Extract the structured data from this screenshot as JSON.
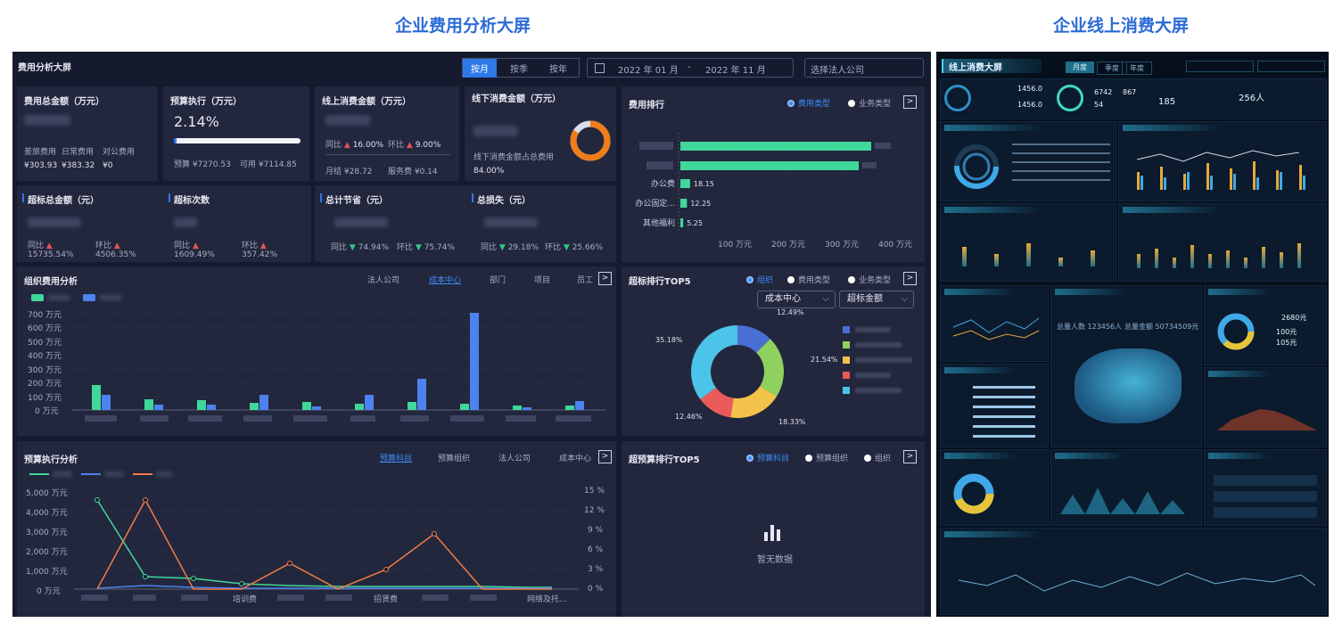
{
  "titles": {
    "left": "企业费用分析大屏",
    "right": "企业线上消费大屏"
  },
  "dash": {
    "title": "费用分析大屏",
    "period_tabs": [
      "按月",
      "按季",
      "按年"
    ],
    "date_start": "2022 年 01 月",
    "date_sep": "-",
    "date_end": "2022 年 11 月",
    "company_placeholder": "选择法人公司",
    "kpi": {
      "total": {
        "title": "费用总金额（万元）",
        "sub": [
          "差旅费用",
          "日常费用",
          "对公费用"
        ],
        "vals": [
          "¥303.93",
          "¥383.32",
          "¥0"
        ]
      },
      "budget": {
        "title": "预算执行（万元）",
        "value": "2.14%",
        "progress": 0.0214,
        "budget_label": "预算 ¥7270.53",
        "available_label": "可用 ¥7114.85"
      },
      "online": {
        "title": "线上消费金额（万元）",
        "yoy_label": "同比",
        "yoy": "16.00%",
        "mom_label": "环比",
        "mom": "9.00%",
        "monthly": "月结 ¥28.72",
        "service": "服务费 ¥0.14"
      },
      "offline": {
        "title": "线下消费金额（万元）",
        "share_label": "线下消费金额占总费用",
        "share": "84.00%",
        "share_value": 0.84
      },
      "over_total": {
        "title": "超标总金额（元）",
        "yoy_label": "同比",
        "yoy": "15735.54%",
        "mom_label": "环比",
        "mom": "4506.35%"
      },
      "over_count": {
        "title": "超标次数",
        "yoy_label": "同比",
        "yoy": "1609.49%",
        "mom_label": "环比",
        "mom": "357.42%"
      },
      "saving": {
        "title": "总计节省（元）",
        "yoy_label": "同比",
        "yoy": "74.94%",
        "mom_label": "环比",
        "mom": "75.74%"
      },
      "loss": {
        "title": "总损失（元）",
        "yoy_label": "同比",
        "yoy": "29.18%",
        "mom_label": "环比",
        "mom": "25.66%"
      }
    },
    "ranking": {
      "title": "费用排行",
      "radios": [
        "费用类型",
        "业务类型"
      ],
      "bars": [
        {
          "label": "办公费",
          "value": 18.15
        },
        {
          "label": "办公固定...",
          "value": 12.25
        },
        {
          "label": "其他福利",
          "value": 5.25
        }
      ],
      "axis": [
        "100 万元",
        "200 万元",
        "300 万元",
        "400 万元"
      ]
    },
    "org": {
      "title": "组织费用分析",
      "tabs": [
        "法人公司",
        "成本中心",
        "部门",
        "项目",
        "员工"
      ],
      "y_axis": [
        "700 万元",
        "600 万元",
        "500 万元",
        "400 万元",
        "300 万元",
        "200 万元",
        "100 万元",
        "0 万元"
      ]
    },
    "top5": {
      "title": "超标排行TOP5",
      "radios": [
        "组织",
        "费用类型",
        "业务类型"
      ],
      "select1": "成本中心",
      "select2": "超标金额",
      "slices": [
        "12.49%",
        "21.54%",
        "18.33%",
        "12.46%",
        "35.18%"
      ],
      "slice_values": [
        12.49,
        21.54,
        18.33,
        12.46,
        35.18
      ],
      "colors": [
        "#4a6fd4",
        "#8fd15f",
        "#f3c24a",
        "#ea5a5a",
        "#4cc3e8"
      ]
    },
    "budget_exec": {
      "title": "预算执行分析",
      "tabs": [
        "预算科目",
        "预算组织",
        "法人公司",
        "成本中心"
      ],
      "y_left": [
        "5,000 万元",
        "4,000 万元",
        "3,000 万元",
        "2,000 万元",
        "1,000 万元",
        "0 万元"
      ],
      "y_right": [
        "15 %",
        "12 %",
        "9 %",
        "6 %",
        "3 %",
        "0 %"
      ],
      "x_labels": [
        "培训费",
        "招贤费",
        "网络及托..."
      ]
    },
    "budget_top5": {
      "title": "超预算排行TOP5",
      "radios": [
        "预算科目",
        "预算组织",
        "组织"
      ],
      "empty": "暂无数据"
    }
  },
  "online_screen": {
    "title": "线上消费大屏",
    "tabs": [
      "月度",
      "季度",
      "年度"
    ],
    "stats": [
      "1456.0",
      "1456.0",
      "185",
      "256人",
      "6742",
      "867",
      "54",
      "2680元",
      "100元",
      "105元"
    ],
    "map_users": "总量人数 123456人",
    "map_amount": "总量金额 50734509元"
  }
}
